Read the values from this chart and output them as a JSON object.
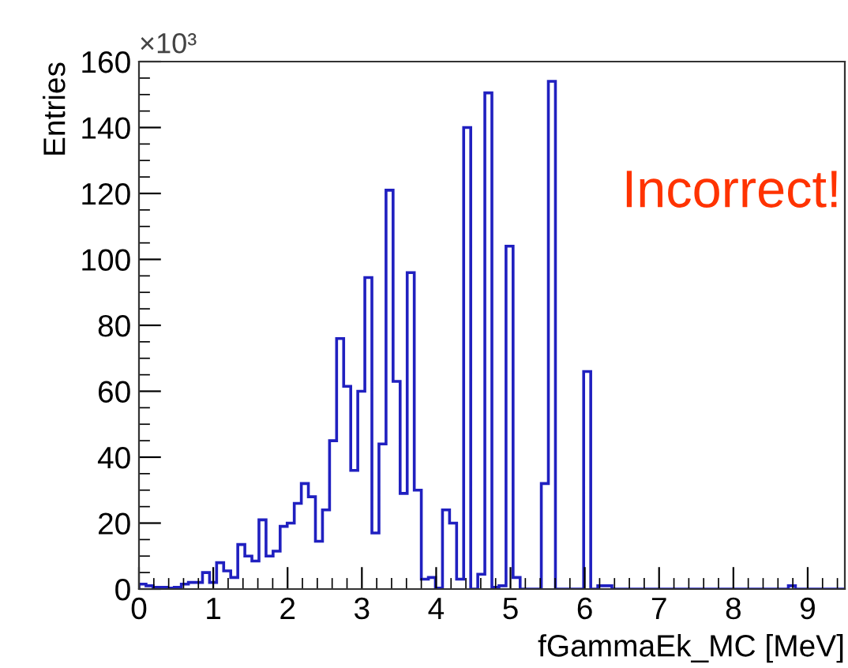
{
  "chart_data": {
    "type": "histogram",
    "xlabel": "fGammaEk_MC [MeV]",
    "ylabel": "Entries",
    "annotations": [
      "×10³",
      "Incorrect!"
    ],
    "bins": [
      0,
      0.095,
      0.19,
      0.285,
      0.38,
      0.475,
      0.57,
      0.665,
      0.76,
      0.855,
      0.95,
      1.045,
      1.14,
      1.235,
      1.33,
      1.425,
      1.52,
      1.615,
      1.71,
      1.805,
      1.9,
      1.995,
      2.09,
      2.185,
      2.28,
      2.375,
      2.47,
      2.565,
      2.66,
      2.755,
      2.85,
      2.945,
      3.04,
      3.135,
      3.23,
      3.325,
      3.42,
      3.515,
      3.61,
      3.705,
      3.8,
      3.895,
      3.99,
      4.085,
      4.18,
      4.275,
      4.37,
      4.465,
      4.56,
      4.655,
      4.75,
      4.845,
      4.94,
      5.035,
      5.13,
      5.225,
      5.32,
      5.415,
      5.51,
      5.605,
      5.7,
      5.795,
      5.89,
      5.985,
      6.08,
      6.175,
      6.27,
      6.365,
      6.46,
      6.555,
      6.65,
      6.745,
      6.84,
      6.935,
      7.03,
      7.125,
      7.22,
      7.315,
      7.41,
      7.505,
      7.6,
      7.695,
      7.79,
      7.885,
      7.98,
      8.075,
      8.17,
      8.265,
      8.36,
      8.455,
      8.55,
      8.645,
      8.74,
      8.835,
      8.93,
      9.025,
      9.12,
      9.215,
      9.31,
      9.405,
      9.5
    ],
    "values": [
      1.5,
      1,
      0.5,
      0.5,
      0.3,
      0.5,
      1.5,
      2,
      2,
      5,
      2,
      8,
      5.5,
      3.5,
      13.5,
      10,
      8.5,
      21,
      10,
      11.5,
      19,
      20,
      26,
      32,
      28,
      14.5,
      24,
      45,
      76,
      61.5,
      36,
      60,
      94.5,
      17,
      44,
      121,
      63,
      29,
      96,
      30,
      3,
      3.5,
      0.3,
      24,
      20,
      3,
      140,
      0,
      4.5,
      150.5,
      0.5,
      1,
      104,
      3.5,
      0,
      0,
      0,
      32,
      154,
      0,
      0,
      0,
      0,
      66,
      0,
      1,
      1,
      0,
      0,
      0,
      0,
      0,
      0,
      0,
      0,
      0,
      0,
      0,
      0,
      0,
      0,
      0,
      0,
      0,
      0,
      0,
      0,
      0,
      0,
      0,
      0,
      0,
      1,
      0,
      0,
      0,
      0,
      0,
      0,
      0
    ],
    "color": "#2020c0",
    "xlim": [
      0,
      9.5
    ],
    "xticks": [
      0,
      1,
      2,
      3,
      4,
      5,
      6,
      7,
      8,
      9
    ],
    "ylim": [
      0,
      160
    ],
    "yticks": [
      0,
      20,
      40,
      60,
      80,
      100,
      120,
      140,
      160
    ],
    "grid": false,
    "legend": false
  }
}
